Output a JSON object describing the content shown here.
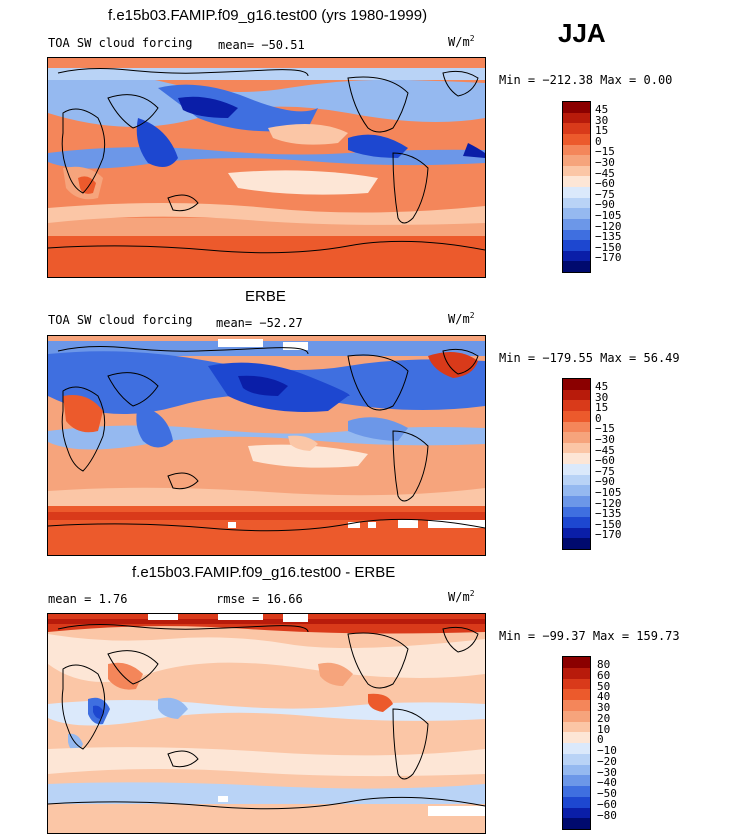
{
  "season": "JJA",
  "units_base": "W/m",
  "units_exp": "2",
  "panel1": {
    "title": "f.e15b03.FAMIP.f09_g16.test00 (yrs 1980-1999)",
    "field": "TOA SW cloud forcing",
    "mean": "mean= −50.51",
    "minmax": "Min = −212.38  Max =   0.00"
  },
  "panel2": {
    "title": "ERBE",
    "field": "TOA SW cloud forcing",
    "mean": "mean= −52.27",
    "minmax": "Min = −179.55  Max =  56.49"
  },
  "panel3": {
    "title": "f.e15b03.FAMIP.f09_g16.test00 - ERBE",
    "mean": "mean =   1.76",
    "rmse": "rmse =  16.66",
    "minmax": "Min = −99.37  Max = 159.73"
  },
  "cbar_abs": {
    "labels": [
      "45",
      "30",
      "15",
      "0",
      "−15",
      "−30",
      "−45",
      "−60",
      "−75",
      "−90",
      "−105",
      "−120",
      "−135",
      "−150",
      "−170"
    ],
    "colors": [
      "#8b0000",
      "#b81b0b",
      "#d93a1a",
      "#ec5a2c",
      "#f4865a",
      "#f6a47c",
      "#fbc6a6",
      "#fde6d6",
      "#dbe9fb",
      "#b9d3f6",
      "#95b9f0",
      "#6c97e8",
      "#3f6fe0",
      "#1d47d0",
      "#0a1ea8",
      "#000a6e"
    ]
  },
  "cbar_diff": {
    "labels": [
      "80",
      "60",
      "50",
      "40",
      "30",
      "20",
      "10",
      "0",
      "−10",
      "−20",
      "−30",
      "−40",
      "−50",
      "−60",
      "−80"
    ],
    "colors": [
      "#8b0000",
      "#b81b0b",
      "#d93a1a",
      "#ec5a2c",
      "#f4865a",
      "#f6a47c",
      "#fbc6a6",
      "#fde6d6",
      "#dbe9fb",
      "#b9d3f6",
      "#95b9f0",
      "#6c97e8",
      "#3f6fe0",
      "#1d47d0",
      "#0a1ea8",
      "#000a6e"
    ]
  }
}
